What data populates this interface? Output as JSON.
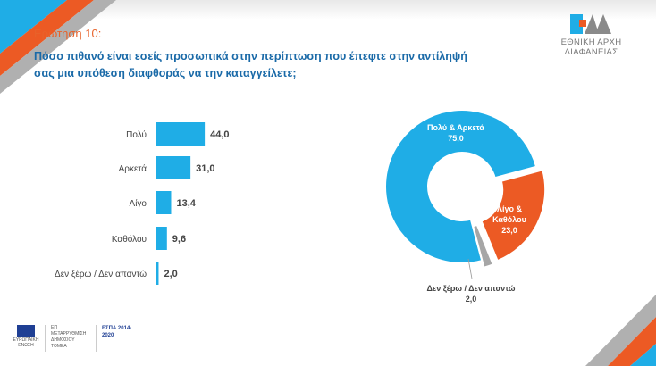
{
  "header": {
    "question_label": "Ερώτηση 10:",
    "question_text": "Πόσο πιθανό είναι εσείς προσωπικά στην περίπτωση που έπεφτε στην αντίληψή σας μια υπόθεση διαφθοράς να την καταγγείλετε;",
    "logo_text": "ΕΘΝΙΚΗ ΑΡΧΗ ΔΙΑΦΑΝΕΙΑΣ"
  },
  "footer": {
    "logo1": "ΕΥΡΩΠΑΪΚΗ ΕΝΩΣΗ",
    "logo2": "ΕΠ ΜΕΤΑΡΡΥΘΜΙΣΗ ΔΗΜΟΣΙΟΥ ΤΟΜΕΑ",
    "logo3": "ΕΣΠΑ 2014-2020"
  },
  "colors": {
    "blue": "#1fade6",
    "orange": "#ec5a24",
    "gray": "#a6a6a6"
  },
  "chart_data": [
    {
      "type": "bar",
      "orientation": "horizontal",
      "categories": [
        "Πολύ",
        "Αρκετά",
        "Λίγο",
        "Καθόλου",
        "Δεν ξέρω / Δεν απαντώ"
      ],
      "values": [
        44.0,
        31.0,
        13.4,
        9.6,
        2.0
      ],
      "labels": [
        "44,0",
        "31,0",
        "13,4",
        "9,6",
        "2,0"
      ],
      "color": "#1fade6"
    },
    {
      "type": "pie",
      "donut": true,
      "slices": [
        {
          "label": "Πολύ & Αρκετά",
          "value": 75.0,
          "text": "75,0",
          "color": "#1fade6"
        },
        {
          "label": "Λίγο & Καθόλου",
          "value": 23.0,
          "text": "23,0",
          "color": "#ec5a24"
        },
        {
          "label": "Δεν ξέρω / Δεν απαντώ",
          "value": 2.0,
          "text": "2,0",
          "color": "#a6a6a6"
        }
      ]
    }
  ]
}
